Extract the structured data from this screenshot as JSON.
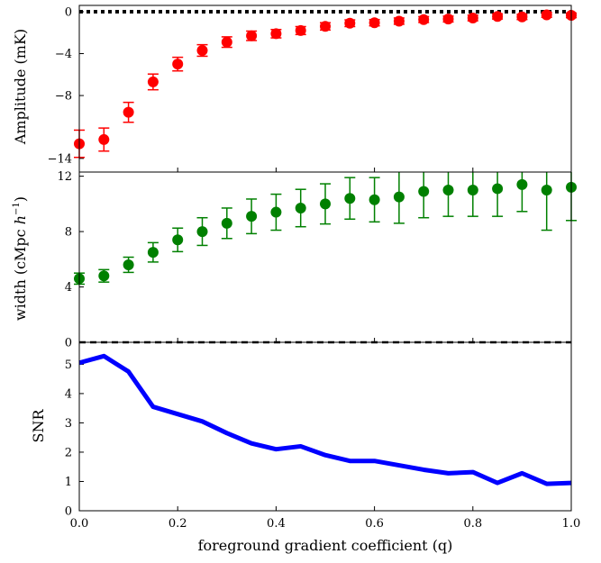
{
  "chart_data": [
    {
      "type": "scatter",
      "panel": "top",
      "ylabel": "Amplitude (mK)",
      "xlim": [
        0.0,
        1.0
      ],
      "ylim": [
        -15.3,
        0.6
      ],
      "yticks": [
        0,
        -4,
        -8,
        -14
      ],
      "yticklabels": [
        "0",
        "−4",
        "−8",
        "−14"
      ],
      "grid": false,
      "reference_line": {
        "y": 0,
        "style": "dotted",
        "color": "#000000"
      },
      "series": [
        {
          "color": "#ff0000",
          "x": [
            0.0,
            0.05,
            0.1,
            0.15,
            0.2,
            0.25,
            0.3,
            0.35,
            0.4,
            0.45,
            0.5,
            0.55,
            0.6,
            0.65,
            0.7,
            0.75,
            0.8,
            0.85,
            0.9,
            0.95,
            1.0
          ],
          "y": [
            -12.6,
            -12.2,
            -9.6,
            -6.7,
            -5.0,
            -3.7,
            -2.9,
            -2.3,
            -2.1,
            -1.8,
            -1.4,
            -1.1,
            -1.05,
            -0.9,
            -0.75,
            -0.7,
            -0.6,
            -0.45,
            -0.5,
            -0.3,
            -0.35
          ],
          "yerr": [
            1.3,
            1.1,
            0.95,
            0.75,
            0.65,
            0.55,
            0.5,
            0.45,
            0.4,
            0.38,
            0.35,
            0.32,
            0.3,
            0.3,
            0.28,
            0.28,
            0.27,
            0.25,
            0.25,
            0.24,
            0.22
          ]
        }
      ]
    },
    {
      "type": "scatter",
      "panel": "middle",
      "ylabel_main": "width (cMpc ",
      "ylabel_italic": "h",
      "ylabel_sup": "−1",
      "ylabel_close": ")",
      "xlim": [
        0.0,
        1.0
      ],
      "ylim": [
        0,
        12.3
      ],
      "yticks": [
        0,
        4,
        8,
        12
      ],
      "yticklabels": [
        "0",
        "4",
        "8",
        "12"
      ],
      "grid": false,
      "reference_line": {
        "y": 0,
        "style": "dashed",
        "color": "#000000"
      },
      "series": [
        {
          "color": "#008000",
          "x": [
            0.0,
            0.05,
            0.1,
            0.15,
            0.2,
            0.25,
            0.3,
            0.35,
            0.4,
            0.45,
            0.5,
            0.55,
            0.6,
            0.65,
            0.7,
            0.75,
            0.8,
            0.85,
            0.9,
            0.95,
            1.0
          ],
          "y": [
            4.6,
            4.8,
            5.6,
            6.5,
            7.4,
            8.0,
            8.6,
            9.1,
            9.4,
            9.7,
            10.0,
            10.4,
            10.3,
            10.5,
            10.9,
            11.0,
            11.0,
            11.1,
            11.4,
            11.0,
            11.2
          ],
          "yerr": [
            0.4,
            0.45,
            0.55,
            0.7,
            0.85,
            1.0,
            1.1,
            1.25,
            1.3,
            1.35,
            1.45,
            1.5,
            1.6,
            1.9,
            1.9,
            1.9,
            1.9,
            2.0,
            1.95,
            2.9,
            2.4
          ]
        }
      ]
    },
    {
      "type": "line",
      "panel": "bottom",
      "ylabel": "SNR",
      "xlabel": "foreground gradient coefficient (q)",
      "xlim": [
        0.0,
        1.0
      ],
      "ylim": [
        0,
        5.75
      ],
      "yticks": [
        0,
        1,
        2,
        3,
        4,
        5
      ],
      "yticklabels": [
        "0",
        "1",
        "2",
        "3",
        "4",
        "5"
      ],
      "xticks": [
        0.0,
        0.2,
        0.4,
        0.6,
        0.8,
        1.0
      ],
      "xticklabels": [
        "0.0",
        "0.2",
        "0.4",
        "0.6",
        "0.8",
        "1.0"
      ],
      "grid": false,
      "series": [
        {
          "color": "#0000ff",
          "x": [
            0.0,
            0.05,
            0.1,
            0.15,
            0.2,
            0.25,
            0.3,
            0.35,
            0.4,
            0.45,
            0.5,
            0.55,
            0.6,
            0.65,
            0.7,
            0.75,
            0.8,
            0.85,
            0.9,
            0.95,
            1.0
          ],
          "y": [
            5.05,
            5.28,
            4.75,
            3.55,
            3.3,
            3.05,
            2.65,
            2.3,
            2.1,
            2.2,
            1.9,
            1.7,
            1.7,
            1.55,
            1.4,
            1.28,
            1.32,
            0.95,
            1.28,
            0.92,
            0.95
          ]
        }
      ]
    }
  ]
}
